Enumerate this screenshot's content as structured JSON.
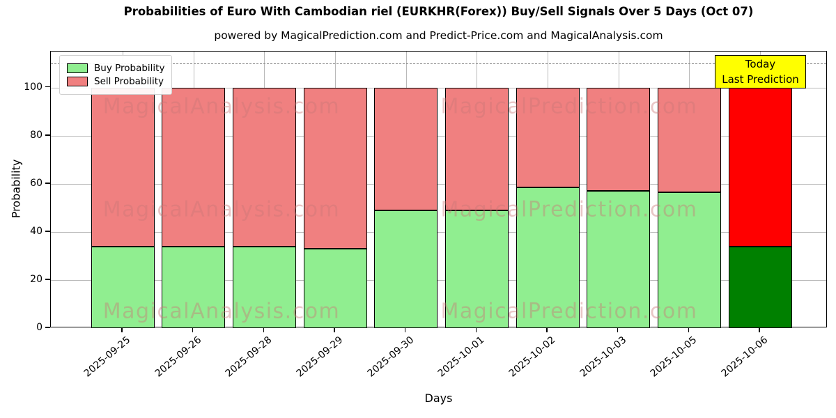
{
  "chart_data": {
    "type": "bar",
    "stacked": true,
    "title": "Probabilities of Euro With Cambodian riel (EURKHR(Forex)) Buy/Sell Signals Over 5 Days (Oct 07)",
    "subtitle": "powered by MagicalPrediction.com and Predict-Price.com and MagicalAnalysis.com",
    "xlabel": "Days",
    "ylabel": "Probability",
    "categories": [
      "2025-09-25",
      "2025-09-26",
      "2025-09-28",
      "2025-09-29",
      "2025-09-30",
      "2025-10-01",
      "2025-10-02",
      "2025-10-03",
      "2025-10-05",
      "2025-10-06"
    ],
    "series": [
      {
        "name": "Buy Probability",
        "values": [
          34,
          34,
          34,
          33,
          49,
          49,
          58.5,
          57,
          56.5,
          34
        ]
      },
      {
        "name": "Sell Probability",
        "values": [
          66,
          66,
          66,
          67,
          51,
          51,
          41.5,
          43,
          43.5,
          66
        ]
      }
    ],
    "ylim": [
      0,
      115
    ],
    "yticks": [
      0,
      20,
      40,
      60,
      80,
      100
    ],
    "grid": true,
    "dashed_line_y": 110,
    "legend_position": "upper left",
    "legend": [
      {
        "label": "Buy Probability",
        "color": "#90ee90"
      },
      {
        "label": "Sell Probability",
        "color": "#f08080"
      }
    ],
    "annotation_box": {
      "line1": "Today",
      "line2": "Last Prediction",
      "bg": "#ffff00"
    },
    "watermarks": {
      "left": "MagicalAnalysis.com",
      "right": "MagicalPrediction.com"
    },
    "colors": {
      "buy": "#90ee90",
      "sell": "#f08080",
      "last_bar_buy": "#008000",
      "last_bar_sell": "#ff0000",
      "bar_edge": "#000000",
      "grid": "#b9b9b9",
      "dashed_line": "#8a8a8a"
    }
  }
}
